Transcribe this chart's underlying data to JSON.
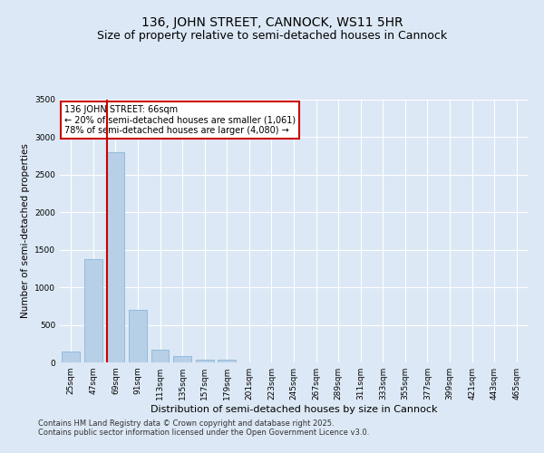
{
  "title": "136, JOHN STREET, CANNOCK, WS11 5HR",
  "subtitle": "Size of property relative to semi-detached houses in Cannock",
  "xlabel": "Distribution of semi-detached houses by size in Cannock",
  "ylabel": "Number of semi-detached properties",
  "categories": [
    "25sqm",
    "47sqm",
    "69sqm",
    "91sqm",
    "113sqm",
    "135sqm",
    "157sqm",
    "179sqm",
    "201sqm",
    "223sqm",
    "245sqm",
    "267sqm",
    "289sqm",
    "311sqm",
    "333sqm",
    "355sqm",
    "377sqm",
    "399sqm",
    "421sqm",
    "443sqm",
    "465sqm"
  ],
  "values": [
    150,
    1380,
    2800,
    700,
    170,
    90,
    40,
    35,
    5,
    0,
    0,
    0,
    0,
    0,
    0,
    0,
    0,
    0,
    0,
    0,
    0
  ],
  "bar_color": "#b8cfe8",
  "bar_edge_color": "#7aafd4",
  "vline_bar_index": 2,
  "vline_color": "#cc0000",
  "annotation_text": "136 JOHN STREET: 66sqm\n← 20% of semi-detached houses are smaller (1,061)\n78% of semi-detached houses are larger (4,080) →",
  "annotation_box_color": "#ffffff",
  "annotation_box_edge": "#cc0000",
  "ylim": [
    0,
    3500
  ],
  "yticks": [
    0,
    500,
    1000,
    1500,
    2000,
    2500,
    3000,
    3500
  ],
  "background_color": "#dce8f5",
  "plot_bg_color": "#dce8f5",
  "footer_text": "Contains HM Land Registry data © Crown copyright and database right 2025.\nContains public sector information licensed under the Open Government Licence v3.0.",
  "title_fontsize": 10,
  "subtitle_fontsize": 9,
  "axis_label_fontsize": 7.5,
  "tick_fontsize": 6.5,
  "annotation_fontsize": 7,
  "footer_fontsize": 6
}
